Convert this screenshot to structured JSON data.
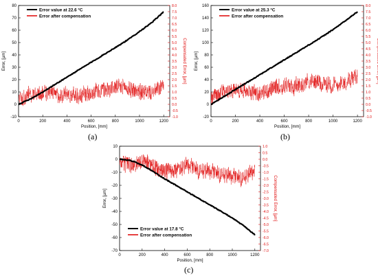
{
  "chart_data": [
    {
      "type": "line",
      "panel_label": "(a)",
      "xlabel": "Position, [mm]",
      "ylabel": "Error, [µm]",
      "ylabel_right": "Compensated Error, [µm]",
      "xlim": [
        0,
        1250
      ],
      "ylim": [
        -10,
        80
      ],
      "ylim_right": [
        -1.0,
        8.0
      ],
      "xticks": [
        "0",
        "200",
        "400",
        "600",
        "800",
        "1000",
        "1200"
      ],
      "yticks": [
        "-10",
        "0",
        "10",
        "20",
        "30",
        "40",
        "50",
        "60",
        "70",
        "80"
      ],
      "yticks_right": [
        "-1.0",
        "-0.5",
        "0.0",
        "0.5",
        "1.0",
        "1.5",
        "2.0",
        "2.5",
        "3.0",
        "3.5",
        "4.0",
        "4.5",
        "5.0",
        "5.5",
        "6.0",
        "6.5",
        "7.0",
        "7.5",
        "8.0"
      ],
      "legend_position": "top-left",
      "series": [
        {
          "name": "Error value at 22.6 °C",
          "color": "#000000",
          "x": [
            0,
            100,
            200,
            300,
            400,
            500,
            600,
            700,
            800,
            900,
            1000,
            1100,
            1200
          ],
          "y": [
            0,
            4.5,
            10,
            16,
            22,
            28,
            34,
            40,
            46,
            52,
            59,
            66,
            75
          ]
        },
        {
          "name": "Error after compensation",
          "color": "#e01010",
          "axis": "right",
          "x": [
            0,
            100,
            200,
            300,
            400,
            500,
            600,
            700,
            800,
            900,
            1000,
            1100,
            1200
          ],
          "y": [
            0.4,
            0.8,
            0.9,
            0.8,
            0.8,
            0.7,
            1.0,
            1.2,
            1.4,
            1.3,
            1.0,
            0.9,
            1.4
          ]
        }
      ]
    },
    {
      "type": "line",
      "panel_label": "(b)",
      "xlabel": "Position, [mm]",
      "ylabel": "Error, [µm]",
      "ylabel_right": "Compensated Error, [µm]",
      "xlim": [
        0,
        1250
      ],
      "ylim": [
        -20,
        160
      ],
      "ylim_right": [
        -1.0,
        8.0
      ],
      "xticks": [
        "0",
        "200",
        "400",
        "600",
        "800",
        "1000",
        "1200"
      ],
      "yticks": [
        "-20",
        "0",
        "20",
        "40",
        "60",
        "80",
        "100",
        "120",
        "140",
        "160"
      ],
      "yticks_right": [
        "-1.0",
        "-0.5",
        "0.0",
        "0.5",
        "1.0",
        "1.5",
        "2.0",
        "2.5",
        "3.0",
        "3.5",
        "4.0",
        "4.5",
        "5.0",
        "5.5",
        "6.0",
        "6.5",
        "7.0",
        "7.5",
        "8.0"
      ],
      "legend_position": "top-left",
      "series": [
        {
          "name": "Error value at 25.3 °C",
          "color": "#000000",
          "x": [
            0,
            100,
            200,
            300,
            400,
            500,
            600,
            700,
            800,
            900,
            1000,
            1100,
            1200
          ],
          "y": [
            0,
            12,
            24,
            36,
            48,
            60,
            72,
            84,
            96,
            108,
            121,
            135,
            150
          ]
        },
        {
          "name": "Error after compensation",
          "color": "#e01010",
          "axis": "right",
          "x": [
            0,
            100,
            200,
            300,
            400,
            500,
            600,
            700,
            800,
            900,
            1000,
            1100,
            1200
          ],
          "y": [
            0.5,
            1.0,
            1.2,
            1.1,
            0.9,
            1.2,
            1.5,
            1.4,
            1.9,
            1.7,
            1.6,
            1.8,
            2.3
          ]
        }
      ]
    },
    {
      "type": "line",
      "panel_label": "(c)",
      "xlabel": "Position, [mm]",
      "ylabel": "Error, [µm]",
      "ylabel_right": "Compensated Error, [µm]",
      "xlim": [
        0,
        1250
      ],
      "ylim": [
        -70,
        10
      ],
      "ylim_right": [
        -7.0,
        1.0
      ],
      "xticks": [
        "0",
        "200",
        "400",
        "600",
        "800",
        "1000",
        "1200"
      ],
      "yticks": [
        "10",
        "0",
        "-10",
        "-20",
        "-30",
        "-40",
        "-50",
        "-60",
        "-70"
      ],
      "yticks_right": [
        "1.0",
        "0.5",
        "0.0",
        "-0.5",
        "-1.0",
        "-1.5",
        "-2.0",
        "-2.5",
        "-3.0",
        "-3.5",
        "-4.0",
        "-4.5",
        "-5.0",
        "-5.5",
        "-6.0",
        "-6.5",
        "-7.0"
      ],
      "legend_position": "bottom-left",
      "series": [
        {
          "name": "Error value at 17.8 °C",
          "color": "#000000",
          "x": [
            0,
            100,
            200,
            300,
            400,
            500,
            600,
            700,
            800,
            900,
            1000,
            1100,
            1200
          ],
          "y": [
            0,
            -1,
            -4.5,
            -9.5,
            -15,
            -20,
            -25,
            -30,
            -35,
            -40,
            -45,
            -51,
            -58
          ]
        },
        {
          "name": "Error after compensation",
          "color": "#e01010",
          "axis": "right",
          "x": [
            0,
            100,
            200,
            300,
            400,
            500,
            600,
            700,
            800,
            900,
            1000,
            1100,
            1200
          ],
          "y": [
            -0.2,
            -0.4,
            -0.2,
            -0.6,
            -0.9,
            -1.0,
            -0.5,
            -0.9,
            -1.0,
            -1.2,
            -1.4,
            -1.5,
            -0.9
          ]
        }
      ]
    }
  ]
}
